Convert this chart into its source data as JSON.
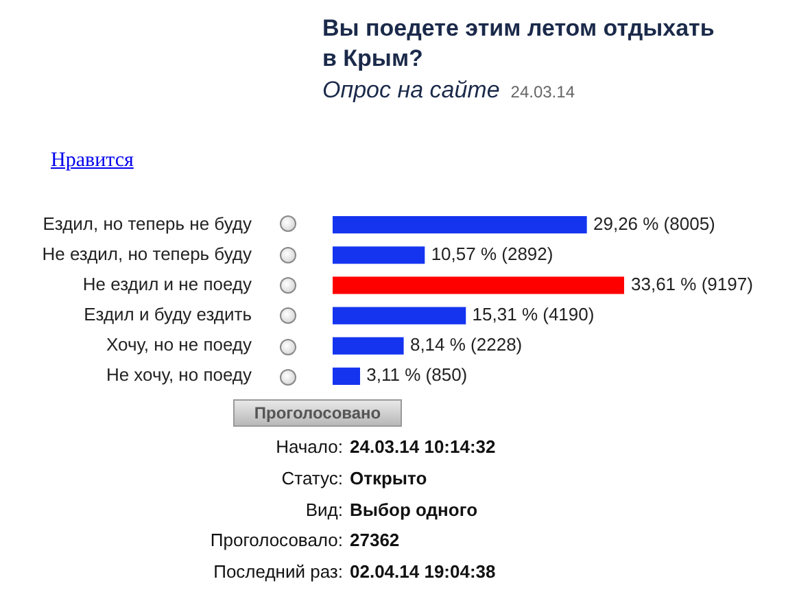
{
  "chart_data": {
    "type": "bar",
    "orientation": "horizontal",
    "title": "Вы поедете этим летом отдыхать в Крым?",
    "subtitle": "Опрос на сайте",
    "categories": [
      "Ездил, но теперь не буду",
      "Не ездил, но теперь буду",
      "Не ездил и не поеду",
      "Ездил и буду ездить",
      "Хочу, но не поеду",
      "Не хочу, но поеду"
    ],
    "values": [
      29.26,
      10.57,
      33.61,
      15.31,
      8.14,
      3.11
    ],
    "colors": [
      "#1434f0",
      "#1434f0",
      "#ff0000",
      "#1434f0",
      "#1434f0",
      "#1434f0"
    ],
    "value_labels": [
      "29,26 % (8005)",
      "10,57 % (2892)",
      "33,61 % (9197)",
      "15,31 % (4190)",
      "8,14 % (2228)",
      "3,11 % (850)"
    ],
    "tick_labels": "y",
    "annotations": [
      "24.03.14",
      "Нравится",
      "Проголосовано",
      "Начало:",
      "24.03.14 10:14:32",
      "Статус:",
      "Открыто",
      "Вид:",
      "Выбор одного",
      "Проголосовало:",
      "27362",
      "Последний раз:",
      "02.04.14 19:04:38"
    ]
  }
}
